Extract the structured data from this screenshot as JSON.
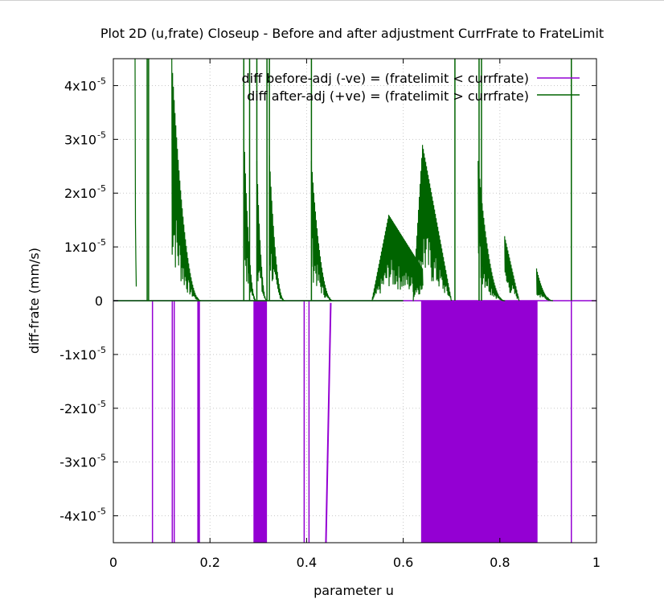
{
  "chart_data": {
    "type": "line",
    "title": "Plot 2D (u,frate) Closeup - Before and after adjustment CurrFrate to FrateLimit",
    "xlabel": "parameter u",
    "ylabel": "diff-frate (mm/s)",
    "xlim": [
      0,
      1
    ],
    "ylim": [
      -4.5e-05,
      4.5e-05
    ],
    "grid": true,
    "legend_position": "top-right",
    "x_ticks": [
      {
        "value": 0,
        "label": "0"
      },
      {
        "value": 0.2,
        "label": "0.2"
      },
      {
        "value": 0.4,
        "label": "0.4"
      },
      {
        "value": 0.6,
        "label": "0.6"
      },
      {
        "value": 0.8,
        "label": "0.8"
      },
      {
        "value": 1,
        "label": "1"
      }
    ],
    "y_ticks": [
      {
        "value": 4e-05,
        "mant": "4x10",
        "exp": "-5"
      },
      {
        "value": 3e-05,
        "mant": "3x10",
        "exp": "-5"
      },
      {
        "value": 2e-05,
        "mant": "2x10",
        "exp": "-5"
      },
      {
        "value": 1e-05,
        "mant": "1x10",
        "exp": "-5"
      },
      {
        "value": 0,
        "mant": "0",
        "exp": ""
      },
      {
        "value": -1e-05,
        "mant": "-1x10",
        "exp": "-5"
      },
      {
        "value": -2e-05,
        "mant": "-2x10",
        "exp": "-5"
      },
      {
        "value": -3e-05,
        "mant": "-3x10",
        "exp": "-5"
      },
      {
        "value": -4e-05,
        "mant": "-4x10",
        "exp": "-5"
      }
    ],
    "series": [
      {
        "name": "diff before-adj (-ve) = (fratelimit < currfrate)",
        "color": "#9400d3",
        "spikes_u": [
          0.081,
          0.122,
          0.126,
          0.175,
          0.176,
          0.177,
          0.178,
          0.395,
          0.405,
          0.7,
          0.79,
          0.948
        ],
        "ramps": [
          {
            "u": [
              0.44,
              0.45
            ],
            "y": [
              -4.5e-05,
              -4e-07
            ]
          }
        ],
        "filled_bands_u": [
          [
            0.29,
            0.318
          ],
          [
            0.637,
            0.878
          ]
        ]
      },
      {
        "name": "diff after-adj (+ve) = (fratelimit > currfrate)",
        "color": "#006400",
        "spikes_u": [
          0.07,
          0.073,
          0.27,
          0.282,
          0.297,
          0.318,
          0.323,
          0.41,
          0.707,
          0.757,
          0.762,
          0.948
        ],
        "decays": [
          {
            "u": [
              0.045,
              0.048
            ],
            "y": [
              4.5e-05,
              0
            ]
          },
          {
            "u": [
              0.121,
              0.182
            ],
            "y": [
              4.5e-05,
              0
            ]
          },
          {
            "u": [
              0.27,
              0.296
            ],
            "y": [
              3.2e-05,
              0
            ]
          },
          {
            "u": [
              0.297,
              0.318
            ],
            "y": [
              2.6e-05,
              0
            ]
          },
          {
            "u": [
              0.323,
              0.355
            ],
            "y": [
              2.7e-05,
              0
            ]
          },
          {
            "u": [
              0.41,
              0.455
            ],
            "y": [
              2.6e-05,
              0
            ]
          },
          {
            "u": [
              0.755,
              0.81
            ],
            "y": [
              2.6e-05,
              0
            ]
          },
          {
            "u": [
              0.876,
              0.91
            ],
            "y": [
              6e-06,
              0
            ]
          }
        ],
        "humps": [
          {
            "u": [
              0.535,
              0.57,
              0.64
            ],
            "y": [
              0,
              1.6e-05,
              6e-06
            ]
          },
          {
            "u": [
              0.62,
              0.64,
              0.7
            ],
            "y": [
              0,
              2.9e-05,
              0
            ]
          },
          {
            "u": [
              0.81,
              0.84
            ],
            "y": [
              1.2e-05,
              0
            ]
          }
        ]
      }
    ]
  }
}
